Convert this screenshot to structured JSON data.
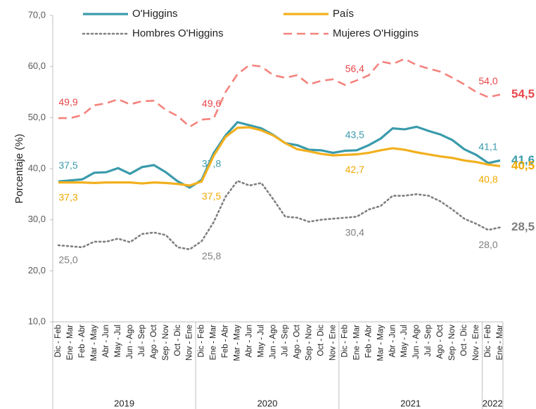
{
  "chart_data": {
    "type": "line",
    "ylabel": "Porcentaje (%)",
    "ylim": [
      10,
      70
    ],
    "yticks": [
      {
        "value": 10,
        "label": "10,0"
      },
      {
        "value": 20,
        "label": "20,0"
      },
      {
        "value": 30,
        "label": "30,0"
      },
      {
        "value": 40,
        "label": "40,0"
      },
      {
        "value": 50,
        "label": "50,0"
      },
      {
        "value": 60,
        "label": "60,0"
      },
      {
        "value": 70,
        "label": "70,0"
      }
    ],
    "grid": false,
    "legend": "top",
    "categories": [
      "Dic - Feb",
      "Ene - Mar",
      "Feb - Abr",
      "Mar - May",
      "Abr - Jun",
      "May - Jul",
      "Jun - Ago",
      "Jul - Sep",
      "Ago - Oct",
      "Sep - Nov",
      "Oct - Dic",
      "Nov - Ene",
      "Dic - Feb",
      "Ene - Mar",
      "Feb - Abr",
      "Mar - May",
      "Abr - Jun",
      "May - Jul",
      "Jun - Ago",
      "Jul - Sep",
      "Ago - Oct",
      "Sep - Nov",
      "Oct - Dic",
      "Nov - Ene",
      "Dic - Feb",
      "Ene - Mar",
      "Feb - Abr",
      "Mar - May",
      "Abr - Jun",
      "May - Jul",
      "Jun - Ago",
      "Jul - Sep",
      "Ago - Oct",
      "Sep - Nov",
      "Oct - Dic",
      "Nov - Ene",
      "Dic - Feb",
      "Ene - Mar"
    ],
    "groups": [
      {
        "label": "2019",
        "count": 12
      },
      {
        "label": "2020",
        "count": 12
      },
      {
        "label": "2021",
        "count": 12
      },
      {
        "label": "2022",
        "count": 2
      }
    ],
    "series": [
      {
        "name": "O'Higgins",
        "color": "#3a9bab",
        "label_color": "#3a9bab",
        "dash": "solid",
        "label_side": "above",
        "values": [
          37.5,
          37.7,
          37.9,
          39.2,
          39.3,
          40.1,
          39.0,
          40.3,
          40.7,
          39.3,
          37.5,
          36.3,
          37.8,
          43.0,
          46.5,
          49.1,
          48.5,
          47.9,
          46.6,
          45.0,
          44.6,
          43.7,
          43.6,
          43.1,
          43.5,
          43.6,
          44.6,
          45.9,
          47.9,
          47.7,
          48.2,
          47.4,
          46.7,
          45.6,
          43.8,
          42.7,
          41.1,
          41.6
        ],
        "value_labels": [
          "37,5",
          null,
          null,
          null,
          null,
          null,
          null,
          null,
          null,
          null,
          null,
          null,
          "37,8",
          null,
          null,
          null,
          null,
          null,
          null,
          null,
          null,
          null,
          null,
          null,
          "43,5",
          null,
          null,
          null,
          null,
          null,
          null,
          null,
          null,
          null,
          null,
          null,
          "41,1",
          "41,6"
        ]
      },
      {
        "name": "País",
        "color": "#f2b01e",
        "label_color": "#f0a800",
        "dash": "solid",
        "label_side": "below",
        "values": [
          37.3,
          37.3,
          37.3,
          37.2,
          37.3,
          37.3,
          37.3,
          37.1,
          37.3,
          37.2,
          37.0,
          36.7,
          37.5,
          42.5,
          46.2,
          48.0,
          48.1,
          47.5,
          46.5,
          45.0,
          43.8,
          43.4,
          42.9,
          42.6,
          42.7,
          42.8,
          43.1,
          43.6,
          44.0,
          43.7,
          43.2,
          42.8,
          42.4,
          42.1,
          41.6,
          41.3,
          40.8,
          40.5
        ],
        "value_labels": [
          "37,3",
          null,
          null,
          null,
          null,
          null,
          null,
          null,
          null,
          null,
          null,
          null,
          "37,5",
          null,
          null,
          null,
          null,
          null,
          null,
          null,
          null,
          null,
          null,
          null,
          "42,7",
          null,
          null,
          null,
          null,
          null,
          null,
          null,
          null,
          null,
          null,
          null,
          "40,8",
          "40,5"
        ]
      },
      {
        "name": "Hombres O'Higgins",
        "color": "#7f7f7f",
        "label_color": "#7f7f7f",
        "dash": "dotted",
        "label_side": "below",
        "values": [
          25.0,
          24.8,
          24.6,
          25.7,
          25.7,
          26.3,
          25.6,
          27.2,
          27.5,
          27.0,
          24.6,
          24.2,
          25.8,
          29.5,
          34.5,
          37.6,
          36.7,
          37.2,
          34.0,
          30.6,
          30.4,
          29.6,
          30.0,
          30.2,
          30.4,
          30.6,
          32.0,
          32.7,
          34.7,
          34.7,
          35.0,
          34.7,
          33.6,
          32.0,
          30.2,
          29.2,
          28.0,
          28.5
        ],
        "value_labels": [
          "25,0",
          null,
          null,
          null,
          null,
          null,
          null,
          null,
          null,
          null,
          null,
          null,
          "25,8",
          null,
          null,
          null,
          null,
          null,
          null,
          null,
          null,
          null,
          null,
          null,
          "30,4",
          null,
          null,
          null,
          null,
          null,
          null,
          null,
          null,
          null,
          null,
          null,
          "28,0",
          "28,5"
        ]
      },
      {
        "name": "Mujeres O'Higgins",
        "color": "#f4837d",
        "label_color": "#e8474a",
        "dash": "dashed",
        "label_side": "above",
        "values": [
          49.9,
          49.9,
          50.5,
          52.4,
          52.8,
          53.6,
          52.6,
          53.2,
          53.3,
          51.5,
          50.3,
          48.2,
          49.6,
          49.8,
          55.0,
          58.5,
          60.3,
          60.0,
          58.3,
          57.8,
          58.3,
          56.5,
          57.2,
          57.5,
          56.4,
          57.3,
          58.3,
          61.0,
          60.5,
          61.5,
          60.3,
          59.6,
          59.0,
          57.8,
          56.5,
          55.0,
          54.0,
          54.5
        ],
        "value_labels": [
          "49,9",
          null,
          null,
          null,
          null,
          null,
          null,
          null,
          null,
          null,
          null,
          null,
          "49,6",
          null,
          null,
          null,
          null,
          null,
          null,
          null,
          null,
          null,
          null,
          null,
          "56,4",
          null,
          null,
          null,
          null,
          null,
          null,
          null,
          null,
          null,
          null,
          null,
          "54,0",
          "54,5"
        ]
      }
    ]
  }
}
